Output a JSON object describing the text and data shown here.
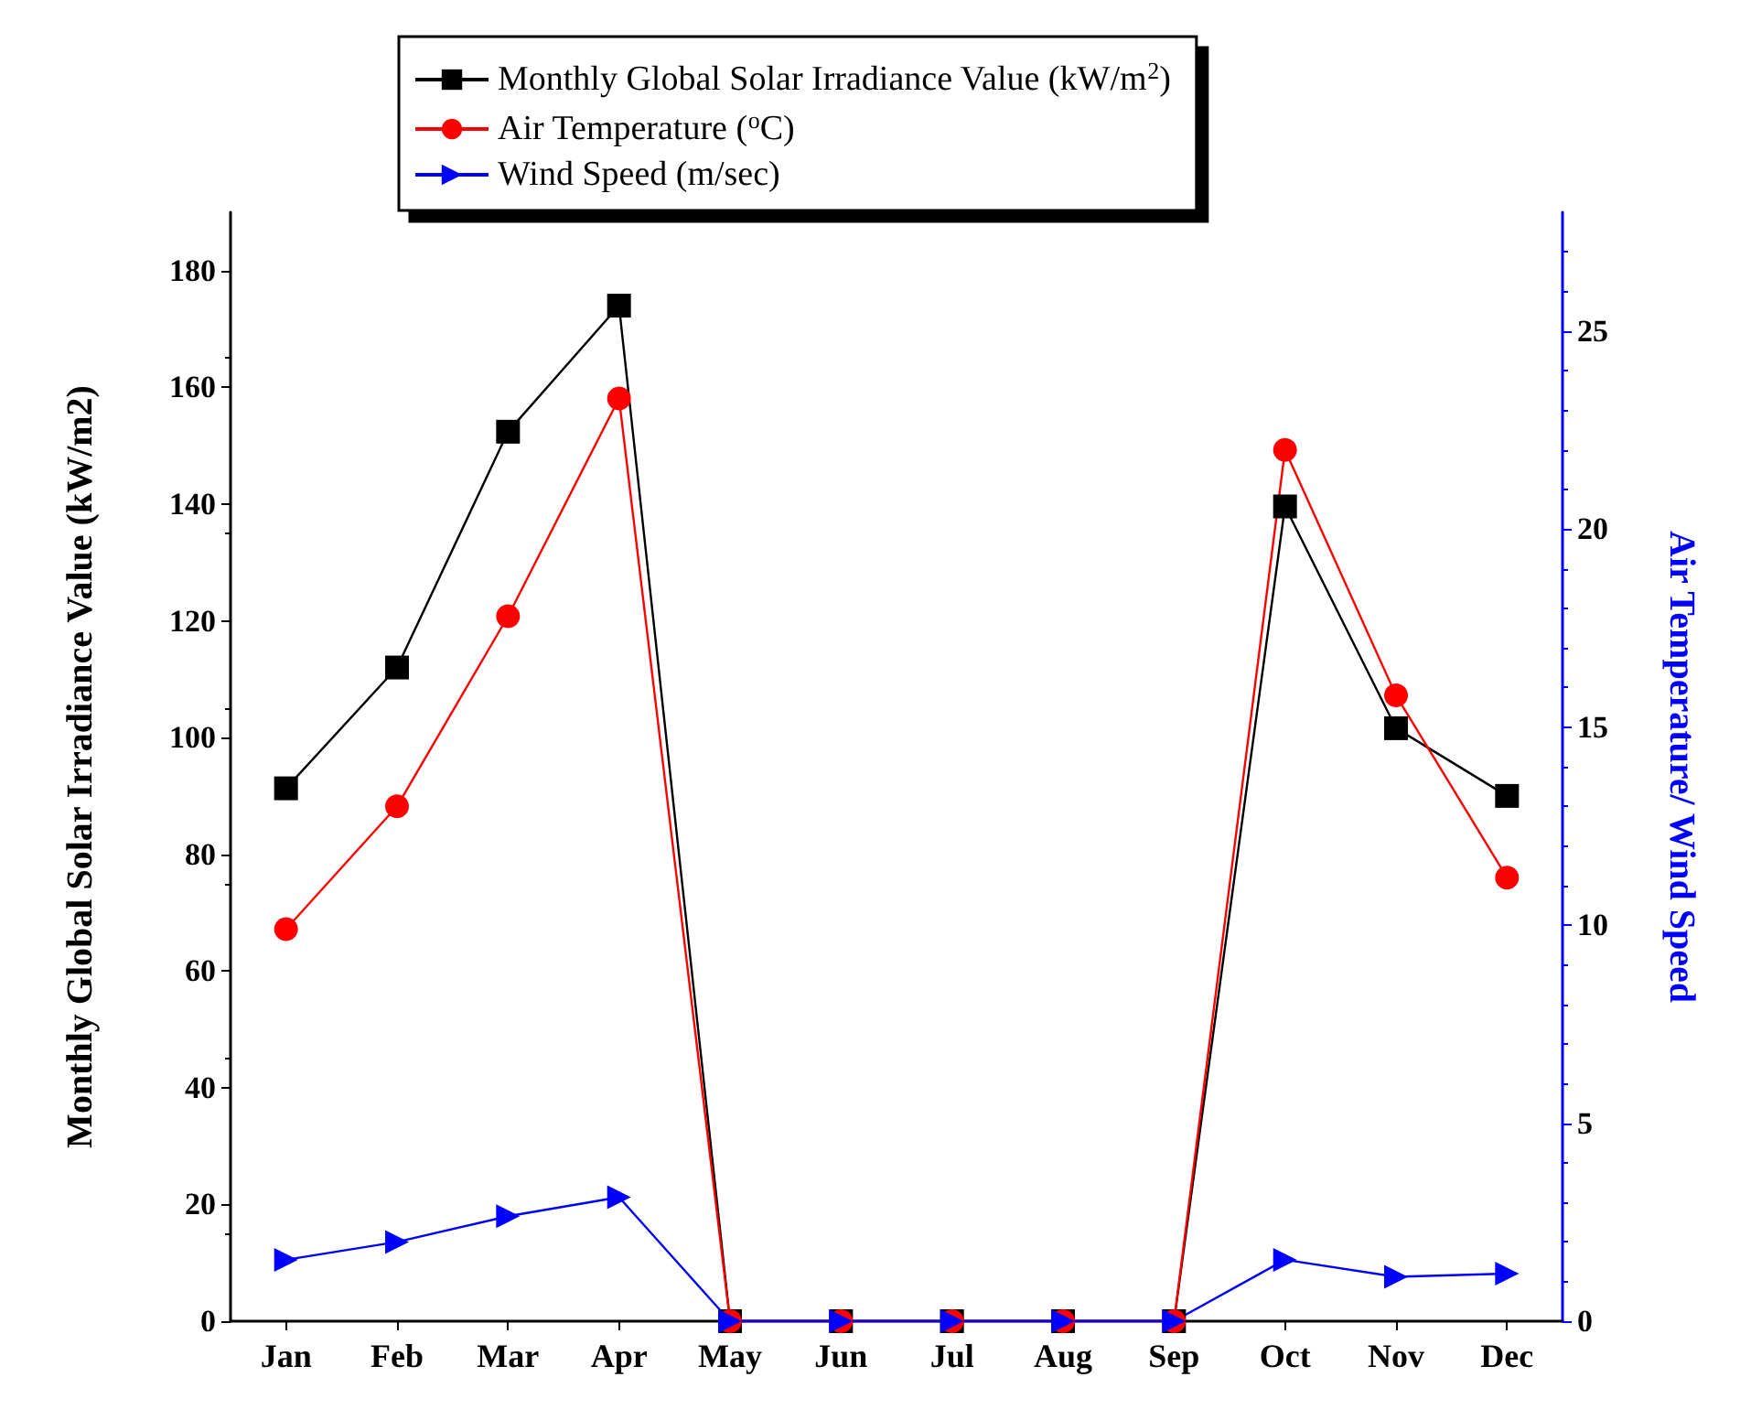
{
  "chart_data": {
    "type": "line",
    "ylabel": "Monthly Global Solar Irradiance Value (kW/m2)",
    "y2label": "Air Temperature/ Wind Speed",
    "categories": [
      "Jan",
      "Feb",
      "Mar",
      "Apr",
      "May",
      "Jun",
      "Jul",
      "Aug",
      "Sep",
      "Oct",
      "Nov",
      "Dec"
    ],
    "series": [
      {
        "name": "Monthly Global Solar Irradiance Value (kW/m$^{2}$)",
        "color": "#000000",
        "marker": "square",
        "values": [
          91.3,
          112,
          152.4,
          174,
          0,
          0,
          0,
          0,
          0,
          139.6,
          101.6,
          90
        ]
      },
      {
        "name": "Air Temperature ($^{o}$C)",
        "color": "#ff0000",
        "marker": "circle",
        "axis": "y2",
        "values": [
          9.9,
          13.0,
          17.8,
          23.3,
          0,
          0,
          0,
          0,
          0,
          22.0,
          15.8,
          11.2
        ]
      },
      {
        "name": "Wind Speed (m/sec)",
        "color": "#0000ff",
        "marker": "triangle",
        "axis": "y2",
        "values": [
          1.55,
          2.0,
          2.65,
          3.13,
          0,
          0,
          0,
          0,
          0,
          1.55,
          1.12,
          1.2
        ]
      }
    ],
    "ylim": [
      0,
      190
    ],
    "yticks": [
      0,
      20,
      40,
      60,
      80,
      100,
      120,
      140,
      160,
      180
    ],
    "y2lim": [
      0,
      28
    ],
    "y2ticks": [
      0,
      5,
      10,
      15,
      20,
      25
    ],
    "legend": "top",
    "grid": false,
    "line_style": "solid"
  }
}
